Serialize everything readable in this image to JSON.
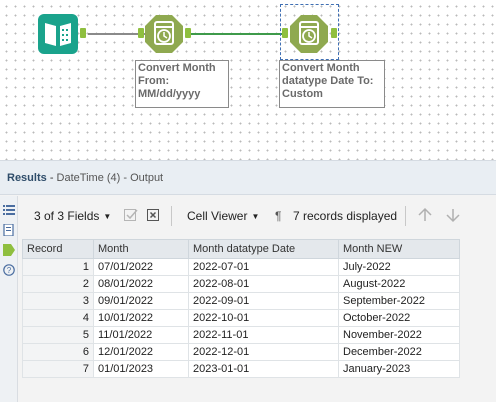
{
  "canvas": {
    "annotations": [
      {
        "lines": [
          "Convert Month",
          "From:",
          "MM/dd/yyyy"
        ]
      },
      {
        "lines": [
          "Convert Month",
          "datatype Date To:",
          "Custom"
        ]
      }
    ],
    "colors": {
      "tool_green": "#8fa950",
      "input_teal": "#1aa38c",
      "connection": "#3e9a4a"
    },
    "icons": [
      "input-data-tool-icon",
      "datetime-tool-icon",
      "datetime-tool-icon"
    ]
  },
  "results": {
    "title": "Results",
    "subtitle": "DateTime (4) - Output",
    "toolbar": {
      "fields_label": "3 of 3 Fields",
      "cell_viewer_label": "Cell Viewer",
      "pilcrow": "¶",
      "records_label": "7 records displayed"
    },
    "columns": [
      "Record",
      "Month",
      "Month datatype Date",
      "Month NEW"
    ],
    "rows": [
      [
        "1",
        "07/01/2022",
        "2022-07-01",
        "July-2022"
      ],
      [
        "2",
        "08/01/2022",
        "2022-08-01",
        "August-2022"
      ],
      [
        "3",
        "09/01/2022",
        "2022-09-01",
        "September-2022"
      ],
      [
        "4",
        "10/01/2022",
        "2022-10-01",
        "October-2022"
      ],
      [
        "5",
        "11/01/2022",
        "2022-11-01",
        "November-2022"
      ],
      [
        "6",
        "12/01/2022",
        "2022-12-01",
        "December-2022"
      ],
      [
        "7",
        "01/01/2023",
        "2023-01-01",
        "January-2023"
      ]
    ]
  }
}
